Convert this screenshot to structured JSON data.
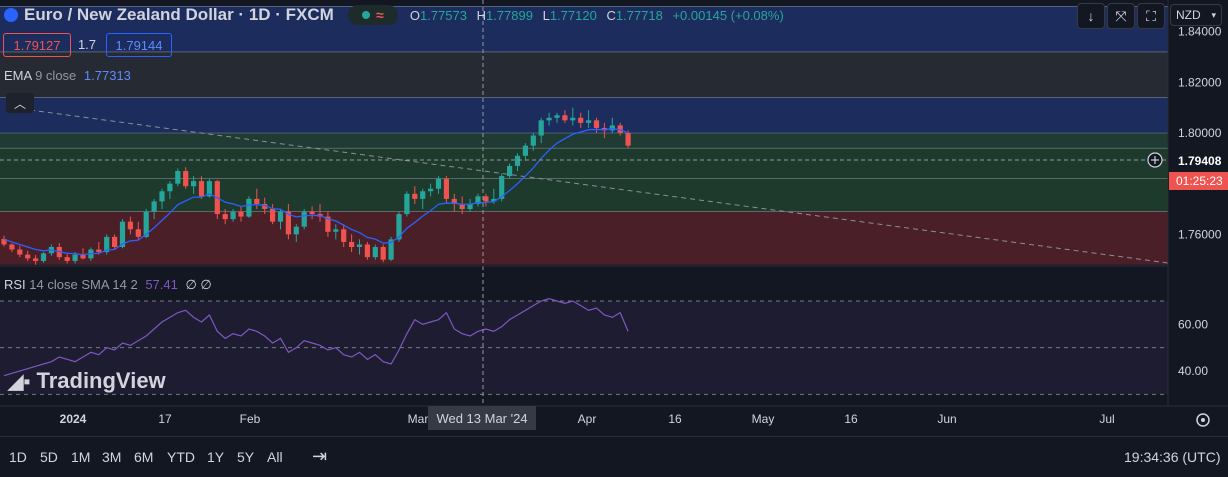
{
  "header": {
    "symbol": "Euro / New Zealand Dollar · 1D · FXCM",
    "open_key": "O",
    "open": "1.77573",
    "high_key": "H",
    "high": "1.77899",
    "low_key": "L",
    "low": "1.77120",
    "close_key": "C",
    "close": "1.77718",
    "change": "+0.00145 (+0.08%)"
  },
  "quote": {
    "sell": "1.79127",
    "spread": "1.7",
    "buy": "1.79144"
  },
  "ema_legend": {
    "name": "EMA",
    "params": "9 close",
    "value": "1.77313"
  },
  "rsi_legend": {
    "name": "RSI",
    "params": "14 close SMA 14 2",
    "value": "57.41",
    "extra": "∅ ∅"
  },
  "toolbar": {
    "currency": "NZD"
  },
  "price_axis": {
    "ticks": [
      "1.84000",
      "1.82000",
      "1.80000",
      "1.78000",
      "1.76000"
    ],
    "last_price": "1.79408",
    "countdown": "01:25:23"
  },
  "rsi_axis": {
    "ticks": [
      "60.00",
      "40.00"
    ]
  },
  "time_axis": {
    "ticks": [
      "2024",
      "17",
      "Feb",
      "Mar",
      "Apr",
      "16",
      "May",
      "16",
      "Jun",
      "Jul"
    ],
    "crosshair_label": "Wed 13 Mar '24"
  },
  "timeframes": [
    "1D",
    "5D",
    "1M",
    "3M",
    "6M",
    "YTD",
    "1Y",
    "5Y",
    "All"
  ],
  "clock": "19:34:36 (UTC)",
  "watermark": "TradingView",
  "colors": {
    "bg": "#131722",
    "up": "#26a69a",
    "down": "#ef5350",
    "ema": "#2962ff",
    "rsi": "#7e57c2",
    "blue_zone": "#1c2c5c",
    "red_zone": "#4a1f28",
    "green_zone": "#1d3a2c"
  },
  "chart_data": {
    "type": "candlestick",
    "series_candles_ohlc": [
      [
        1.7582,
        1.7595,
        1.7552,
        1.756
      ],
      [
        1.756,
        1.7565,
        1.753,
        1.754
      ],
      [
        1.754,
        1.7555,
        1.751,
        1.752
      ],
      [
        1.752,
        1.7535,
        1.7495,
        1.7505
      ],
      [
        1.7505,
        1.7518,
        1.748,
        1.7495
      ],
      [
        1.7495,
        1.753,
        1.7488,
        1.7525
      ],
      [
        1.7525,
        1.756,
        1.7515,
        1.755
      ],
      [
        1.755,
        1.7565,
        1.75,
        1.751
      ],
      [
        1.751,
        1.7522,
        1.7485,
        1.7495
      ],
      [
        1.7495,
        1.753,
        1.7485,
        1.752
      ],
      [
        1.752,
        1.7545,
        1.75,
        1.7505
      ],
      [
        1.7505,
        1.7548,
        1.7495,
        1.754
      ],
      [
        1.754,
        1.757,
        1.752,
        1.753
      ],
      [
        1.753,
        1.76,
        1.752,
        1.759
      ],
      [
        1.759,
        1.76,
        1.754,
        1.755
      ],
      [
        1.755,
        1.766,
        1.7545,
        1.765
      ],
      [
        1.765,
        1.767,
        1.76,
        1.762
      ],
      [
        1.762,
        1.765,
        1.758,
        1.759
      ],
      [
        1.759,
        1.77,
        1.7585,
        1.769
      ],
      [
        1.769,
        1.774,
        1.766,
        1.773
      ],
      [
        1.773,
        1.778,
        1.77,
        1.777
      ],
      [
        1.777,
        1.781,
        1.774,
        1.78
      ],
      [
        1.78,
        1.786,
        1.779,
        1.785
      ],
      [
        1.785,
        1.7865,
        1.778,
        1.779
      ],
      [
        1.779,
        1.783,
        1.776,
        1.781
      ],
      [
        1.781,
        1.783,
        1.774,
        1.775
      ],
      [
        1.775,
        1.782,
        1.7745,
        1.781
      ],
      [
        1.781,
        1.7815,
        1.766,
        1.768
      ],
      [
        1.768,
        1.77,
        1.764,
        1.766
      ],
      [
        1.766,
        1.77,
        1.765,
        1.769
      ],
      [
        1.769,
        1.771,
        1.765,
        1.767
      ],
      [
        1.767,
        1.775,
        1.7665,
        1.774
      ],
      [
        1.774,
        1.778,
        1.77,
        1.772
      ],
      [
        1.772,
        1.7745,
        1.768,
        1.77
      ],
      [
        1.77,
        1.772,
        1.764,
        1.765
      ],
      [
        1.765,
        1.77,
        1.762,
        1.769
      ],
      [
        1.769,
        1.772,
        1.758,
        1.76
      ],
      [
        1.76,
        1.764,
        1.757,
        1.763
      ],
      [
        1.763,
        1.77,
        1.762,
        1.769
      ],
      [
        1.769,
        1.771,
        1.766,
        1.768
      ],
      [
        1.768,
        1.772,
        1.765,
        1.767
      ],
      [
        1.767,
        1.769,
        1.759,
        1.761
      ],
      [
        1.761,
        1.764,
        1.758,
        1.762
      ],
      [
        1.762,
        1.764,
        1.755,
        1.757
      ],
      [
        1.757,
        1.76,
        1.753,
        1.755
      ],
      [
        1.755,
        1.758,
        1.752,
        1.756
      ],
      [
        1.756,
        1.757,
        1.75,
        1.751
      ],
      [
        1.751,
        1.756,
        1.75,
        1.755
      ],
      [
        1.755,
        1.756,
        1.749,
        1.75
      ],
      [
        1.75,
        1.759,
        1.7495,
        1.758
      ],
      [
        1.758,
        1.769,
        1.757,
        1.768
      ],
      [
        1.768,
        1.777,
        1.767,
        1.776
      ],
      [
        1.776,
        1.779,
        1.772,
        1.774
      ],
      [
        1.774,
        1.778,
        1.77,
        1.777
      ],
      [
        1.777,
        1.78,
        1.775,
        1.778
      ],
      [
        1.778,
        1.783,
        1.776,
        1.782
      ],
      [
        1.782,
        1.783,
        1.772,
        1.774
      ],
      [
        1.774,
        1.776,
        1.769,
        1.772
      ],
      [
        1.772,
        1.775,
        1.768,
        1.77
      ],
      [
        1.77,
        1.774,
        1.769,
        1.772
      ],
      [
        1.772,
        1.776,
        1.771,
        1.775
      ],
      [
        1.775,
        1.776,
        1.771,
        1.773
      ],
      [
        1.773,
        1.778,
        1.772,
        1.774
      ],
      [
        1.774,
        1.784,
        1.773,
        1.783
      ],
      [
        1.783,
        1.788,
        1.782,
        1.787
      ],
      [
        1.787,
        1.792,
        1.785,
        1.791
      ],
      [
        1.791,
        1.796,
        1.789,
        1.795
      ],
      [
        1.795,
        1.8,
        1.793,
        1.799
      ],
      [
        1.799,
        1.806,
        1.796,
        1.805
      ],
      [
        1.805,
        1.808,
        1.803,
        1.806
      ],
      [
        1.806,
        1.808,
        1.804,
        1.807
      ],
      [
        1.807,
        1.809,
        1.804,
        1.805
      ],
      [
        1.805,
        1.81,
        1.803,
        1.806
      ],
      [
        1.806,
        1.808,
        1.802,
        1.804
      ],
      [
        1.804,
        1.809,
        1.802,
        1.805
      ],
      [
        1.805,
        1.806,
        1.8,
        1.802
      ],
      [
        1.802,
        1.804,
        1.798,
        1.801
      ],
      [
        1.801,
        1.806,
        1.8,
        1.803
      ],
      [
        1.803,
        1.804,
        1.799,
        1.8
      ],
      [
        1.8,
        1.801,
        1.794,
        1.795
      ]
    ],
    "ema": [
      1.758,
      1.757,
      1.756,
      1.755,
      1.754,
      1.7535,
      1.7538,
      1.7532,
      1.7525,
      1.7524,
      1.752,
      1.7524,
      1.7525,
      1.7538,
      1.754,
      1.7562,
      1.7574,
      1.7577,
      1.76,
      1.7626,
      1.7655,
      1.7684,
      1.7717,
      1.7732,
      1.7747,
      1.7747,
      1.776,
      1.7744,
      1.7727,
      1.772,
      1.771,
      1.7716,
      1.7717,
      1.7714,
      1.7701,
      1.7699,
      1.7679,
      1.7669,
      1.7673,
      1.7675,
      1.7674,
      1.7661,
      1.7653,
      1.7636,
      1.7619,
      1.7607,
      1.7588,
      1.7581,
      1.7565,
      1.7568,
      1.759,
      1.7624,
      1.7647,
      1.7672,
      1.7693,
      1.7719,
      1.7723,
      1.7723,
      1.7718,
      1.7719,
      1.7725,
      1.7726,
      1.7729,
      1.7749,
      1.7773,
      1.78,
      1.783,
      1.7862,
      1.79,
      1.7932,
      1.796,
      1.7978,
      1.7995,
      1.8004,
      1.8013,
      1.8014,
      1.8013,
      1.8017,
      1.8013,
      1.8
    ],
    "rsi_values": [
      38,
      39,
      40,
      41,
      42,
      43,
      44,
      46,
      45,
      44,
      46,
      48,
      47,
      50,
      49,
      52,
      51,
      53,
      55,
      58,
      61,
      63,
      65,
      66,
      63,
      61,
      64,
      57,
      54,
      56,
      55,
      58,
      57,
      55,
      52,
      54,
      48,
      50,
      53,
      52,
      51,
      49,
      50,
      47,
      46,
      48,
      45,
      47,
      44,
      43,
      49,
      56,
      62,
      60,
      61,
      62,
      65,
      58,
      56,
      55,
      57,
      58,
      57,
      59,
      62,
      64,
      66,
      68,
      70,
      71,
      70,
      69,
      70,
      68,
      66,
      67,
      64,
      63,
      65,
      57
    ],
    "rsi_ma": [
      40,
      40,
      41,
      41,
      42,
      42,
      43,
      43,
      44,
      44,
      45,
      45,
      46,
      46,
      47,
      47,
      48,
      49,
      50,
      51,
      52,
      53,
      54,
      55,
      56,
      56,
      56,
      56,
      56,
      56,
      56,
      56,
      56,
      55,
      55,
      55,
      54,
      54,
      54,
      53,
      53,
      53,
      52,
      52,
      51,
      51,
      50,
      50,
      49,
      49,
      49,
      50,
      51,
      52,
      52,
      53,
      54,
      54,
      54,
      55,
      55,
      56,
      56,
      57,
      57,
      58,
      59,
      60,
      61,
      62,
      63,
      64,
      64,
      65,
      65,
      66,
      66,
      66,
      66,
      65
    ],
    "price_ylim": [
      1.7475,
      1.8525
    ],
    "rsi_ylim": [
      25,
      85
    ],
    "zones": [
      {
        "from": 1.832,
        "to": 1.85,
        "color": "blue"
      },
      {
        "from": 1.814,
        "to": 1.832,
        "color": "gray"
      },
      {
        "from": 1.8,
        "to": 1.814,
        "color": "blue"
      },
      {
        "from": 1.794,
        "to": 1.8,
        "color": "green-light"
      },
      {
        "from": 1.782,
        "to": 1.794,
        "color": "green"
      },
      {
        "from": 1.769,
        "to": 1.782,
        "color": "green"
      },
      {
        "from": 1.748,
        "to": 1.769,
        "color": "red"
      }
    ],
    "rsi_levels": [
      70,
      50,
      30
    ]
  }
}
